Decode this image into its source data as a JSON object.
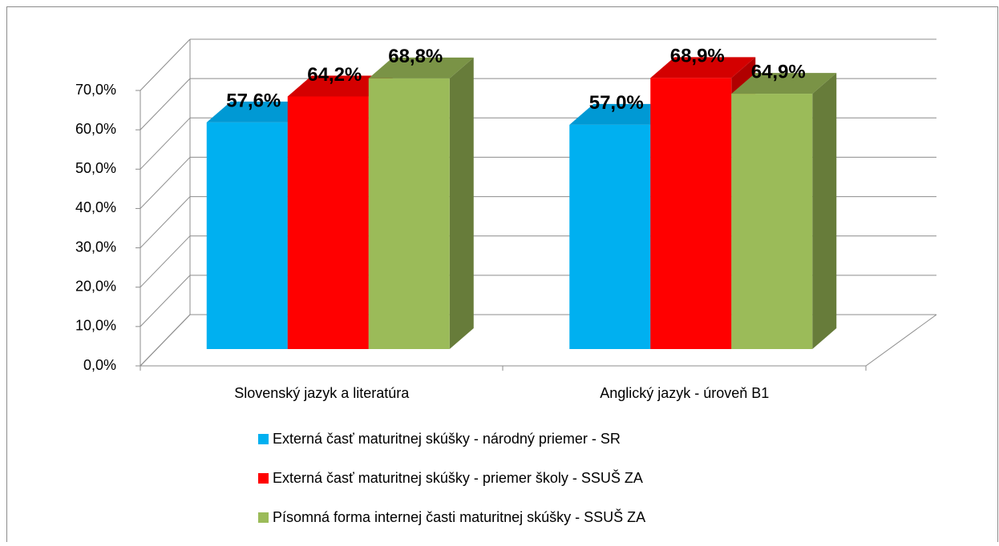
{
  "chart_data": {
    "type": "bar3d",
    "categories": [
      "Slovenský jazyk a literatúra",
      "Anglický jazyk - úroveň B1"
    ],
    "series": [
      {
        "name": "Externá časť maturitnej skúšky - národný priemer - SR",
        "color": "#00b0f0",
        "side": "#0089bb",
        "top": "#0099d4",
        "values": [
          57.6,
          57.0
        ],
        "value_labels": [
          "57,6%",
          "57,0%"
        ]
      },
      {
        "name": "Externá časť maturitnej skúšky - priemer školy - SSUŠ ZA",
        "color": "#ff0000",
        "side": "#b00000",
        "top": "#d40000",
        "values": [
          64.2,
          68.9
        ],
        "value_labels": [
          "64,2%",
          "68,9%"
        ]
      },
      {
        "name": "Písomná forma internej časti maturitnej skúšky - SSUŠ ZA",
        "color": "#9bbb59",
        "side": "#677c3a",
        "top": "#7a9346",
        "values": [
          68.8,
          64.9
        ],
        "value_labels": [
          "68,8%",
          "64,9%"
        ]
      }
    ],
    "ylim": [
      0,
      70
    ],
    "yticks": [
      {
        "value": 0,
        "label": "0,0%"
      },
      {
        "value": 10,
        "label": "10,0%"
      },
      {
        "value": 20,
        "label": "20,0%"
      },
      {
        "value": 30,
        "label": "30,0%"
      },
      {
        "value": 40,
        "label": "40,0%"
      },
      {
        "value": 50,
        "label": "50,0%"
      },
      {
        "value": 60,
        "label": "60,0%"
      },
      {
        "value": 70,
        "label": "70,0%"
      }
    ],
    "grid": true
  }
}
